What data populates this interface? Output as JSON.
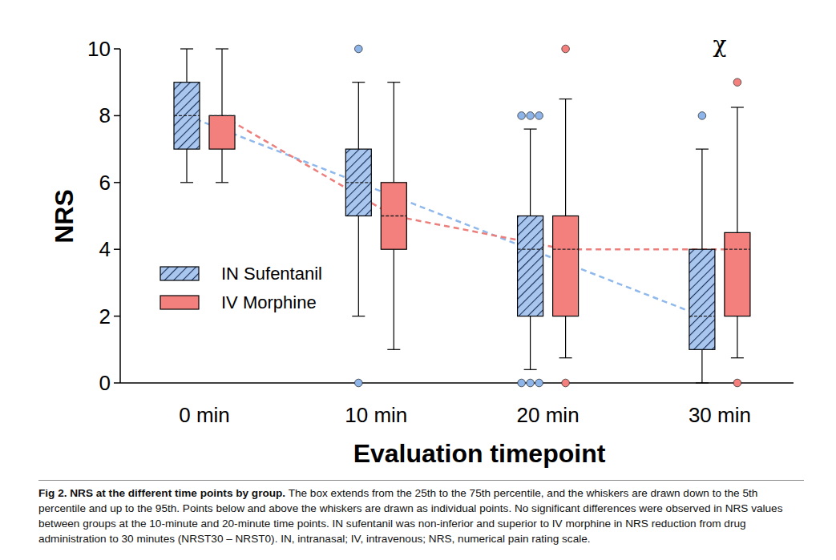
{
  "chart_data": {
    "type": "box",
    "x_label": "Evaluation timepoint",
    "y_label": "NRS",
    "categories": [
      "0 min",
      "10 min",
      "20 min",
      "30 min"
    ],
    "ylim": [
      0,
      10
    ],
    "yticks": [
      0,
      2,
      4,
      6,
      8,
      10
    ],
    "grid": false,
    "legend": "left",
    "series": [
      {
        "name": "IN Sufentanil",
        "color": "#a8c6ee",
        "low": [
          6,
          2,
          0.4,
          0
        ],
        "q1": [
          7,
          5,
          2,
          1
        ],
        "median": [
          8,
          6,
          4,
          2
        ],
        "q3": [
          9,
          7,
          5,
          4
        ],
        "high": [
          10,
          9,
          7.6,
          7
        ],
        "outliers": [
          [],
          [
            10,
            0
          ],
          [
            8,
            8,
            8,
            0,
            0,
            0
          ],
          [
            8
          ]
        ],
        "line_style": "dashed"
      },
      {
        "name": "IV Morphine",
        "color": "#f4807e",
        "low": [
          6,
          1,
          0.75,
          0.75
        ],
        "q1": [
          7,
          4,
          2,
          2
        ],
        "median": [
          8,
          5,
          4,
          4
        ],
        "q3": [
          8,
          6,
          5,
          4.5
        ],
        "high": [
          10,
          9,
          8.5,
          8.25
        ],
        "outliers": [
          [],
          [],
          [
            10,
            0
          ],
          [
            9,
            0
          ]
        ],
        "line_style": "dashed"
      }
    ],
    "annotations": [
      {
        "text": "χ",
        "category": "30 min",
        "y": 9.9
      }
    ],
    "caption_title": "Fig 2. NRS at the different time points by group.",
    "caption": "The box extends from the 25th to the 75th percentile, and the whiskers are drawn down to the 5th percentile and up to the 95th. Points below and above the whiskers are drawn as individual points. No significant differences were observed in NRS values between groups at the 10-minute and 20-minute time points. IN sufentanil was non-inferior and superior to IV morphine in NRS reduction from drug administration to 30 minutes (NRST30 – NRST0). IN, intranasal; IV, intravenous; NRS, numerical pain rating scale."
  }
}
